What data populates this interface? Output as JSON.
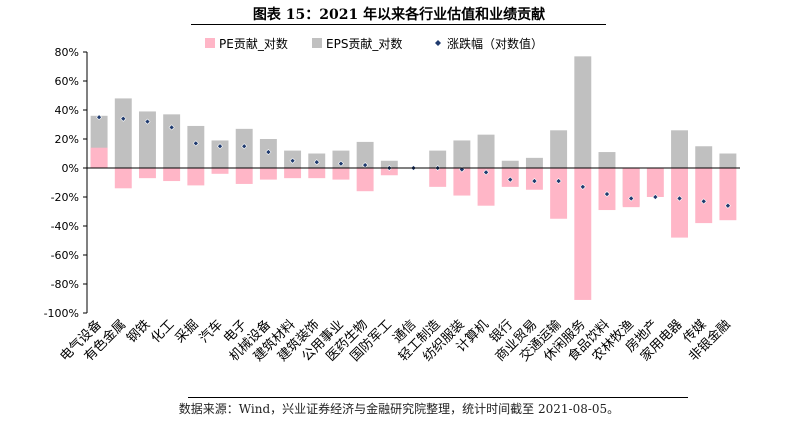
{
  "title": "图表 15：2021 年以来各行业估值和业绩贡献",
  "source": "数据来源：Wind，兴业证券经济与金融研究院整理，统计时间截至 2021-08-05。",
  "chart_data": {
    "type": "bar",
    "title": "图表 15：2021 年以来各行业估值和业绩贡献",
    "ylim": [
      -100,
      80
    ],
    "yticks": [
      80,
      60,
      40,
      20,
      0,
      -20,
      -40,
      -60,
      -80,
      -100
    ],
    "ytick_labels": [
      "80%",
      "60%",
      "40%",
      "20%",
      "0%",
      "-20%",
      "-40%",
      "-60%",
      "-80%",
      "-100%"
    ],
    "grid": false,
    "legend_position": "top",
    "categories": [
      "电气设备",
      "有色金属",
      "钢铁",
      "化工",
      "采掘",
      "汽车",
      "电子",
      "机械设备",
      "建筑材料",
      "建筑装饰",
      "公用事业",
      "医药生物",
      "国防军工",
      "通信",
      "轻工制造",
      "纺织服装",
      "计算机",
      "银行",
      "商业贸易",
      "交通运输",
      "休闲服务",
      "食品饮料",
      "农林牧渔",
      "房地产",
      "家用电器",
      "传媒",
      "非银金融"
    ],
    "series": [
      {
        "name": "PE贡献_对数",
        "kind": "bar",
        "color": "#ffb6c7",
        "values": [
          14,
          -14,
          -7,
          -9,
          -12,
          -4,
          -11,
          -8,
          -7,
          -7,
          -8,
          -16,
          -5,
          0,
          -13,
          -19,
          -26,
          -13,
          -15,
          -35,
          -91,
          -29,
          -27,
          -20,
          -48,
          -38,
          -36
        ]
      },
      {
        "name": "EPS贡献_对数",
        "kind": "bar",
        "color": "#c0c0c0",
        "values": [
          36,
          48,
          39,
          37,
          29,
          19,
          27,
          20,
          12,
          10,
          12,
          18,
          5,
          0,
          12,
          19,
          23,
          5,
          7,
          26,
          77,
          11,
          -26,
          0,
          26,
          15,
          10
        ]
      },
      {
        "name": "涨跌幅（对数值）",
        "kind": "marker",
        "color": "#1f3a6e",
        "values": [
          35,
          34,
          32,
          28,
          17,
          15,
          15,
          11,
          5,
          4,
          3,
          2,
          0,
          0,
          0,
          -1,
          -3,
          -8,
          -9,
          -9,
          -13,
          -18,
          -21,
          -20,
          -21,
          -23,
          -26
        ]
      }
    ]
  }
}
